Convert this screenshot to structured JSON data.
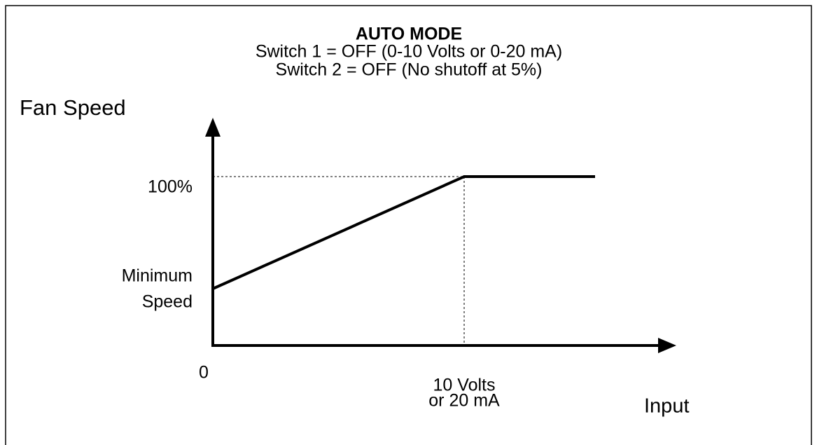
{
  "title": "AUTO MODE",
  "subtitle": [
    "Switch 1 = OFF (0-10 Volts or 0-20 mA)",
    "Switch 2 = OFF (No shutoff at 5%)"
  ],
  "y_axis": {
    "label": "Fan Speed",
    "max_label": "100%",
    "min_label": [
      "Minimum",
      "Speed"
    ]
  },
  "x_axis": {
    "label": "Input",
    "origin_label": "0",
    "max_label": [
      "10 Volts",
      "or 20 mA"
    ]
  }
}
